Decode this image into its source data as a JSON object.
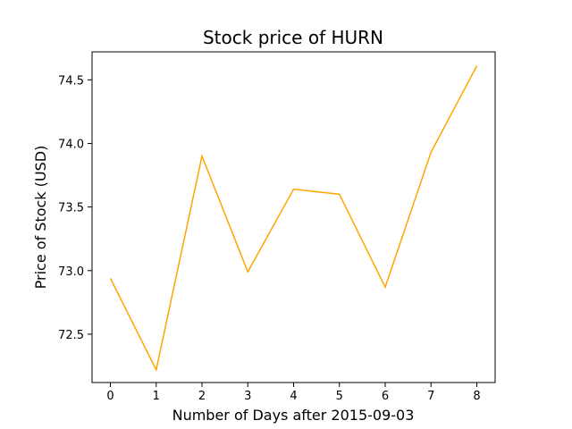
{
  "chart_data": {
    "type": "line",
    "title": "Stock price of HURN",
    "xlabel": "Number of Days after 2015-09-03",
    "ylabel": "Price of Stock (USD)",
    "x": [
      0,
      1,
      2,
      3,
      4,
      5,
      6,
      7,
      8
    ],
    "series": [
      {
        "values": [
          72.94,
          72.22,
          73.9,
          72.99,
          73.64,
          73.6,
          72.87,
          73.93,
          74.61
        ],
        "color": "#ffa500"
      }
    ],
    "xlim": [
      -0.4,
      8.4
    ],
    "ylim": [
      72.12,
      74.72
    ],
    "x_ticks": [
      0,
      1,
      2,
      3,
      4,
      5,
      6,
      7,
      8
    ],
    "x_tick_labels": [
      "0",
      "1",
      "2",
      "3",
      "4",
      "5",
      "6",
      "7",
      "8"
    ],
    "y_ticks": [
      72.5,
      73.0,
      73.5,
      74.0,
      74.5
    ],
    "y_tick_labels": [
      "72.5",
      "73.0",
      "73.5",
      "74.0",
      "74.5"
    ],
    "grid": false,
    "legend": "none"
  }
}
